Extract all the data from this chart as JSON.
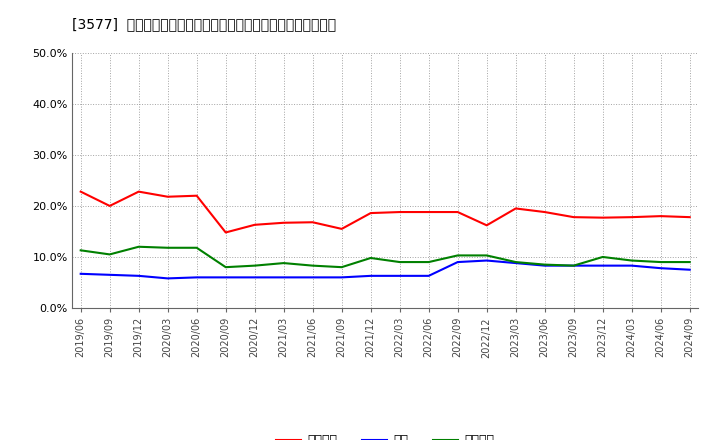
{
  "title": "[3577]  売上債権、在庫、買入債務の総資産に対する比率の推移",
  "background_color": "#ffffff",
  "plot_bg_color": "#ffffff",
  "grid_color": "#999999",
  "ylim": [
    0.0,
    0.5
  ],
  "yticks": [
    0.0,
    0.1,
    0.2,
    0.3,
    0.4,
    0.5
  ],
  "legend_labels": [
    "売上債権",
    "在庫",
    "買入債務"
  ],
  "line_colors": [
    "#ff0000",
    "#0000ff",
    "#008000"
  ],
  "dates": [
    "2019/06",
    "2019/09",
    "2019/12",
    "2020/03",
    "2020/06",
    "2020/09",
    "2020/12",
    "2021/03",
    "2021/06",
    "2021/09",
    "2021/12",
    "2022/03",
    "2022/06",
    "2022/09",
    "2022/12",
    "2023/03",
    "2023/06",
    "2023/09",
    "2023/12",
    "2024/03",
    "2024/06",
    "2024/09"
  ],
  "series_urikake": [
    0.228,
    0.2,
    0.228,
    0.218,
    0.22,
    0.148,
    0.163,
    0.167,
    0.168,
    0.155,
    0.186,
    0.188,
    0.188,
    0.188,
    0.162,
    0.195,
    0.188,
    0.178,
    0.177,
    0.178,
    0.18,
    0.178
  ],
  "series_zaiko": [
    0.067,
    0.065,
    0.063,
    0.058,
    0.06,
    0.06,
    0.06,
    0.06,
    0.06,
    0.06,
    0.063,
    0.063,
    0.063,
    0.09,
    0.093,
    0.088,
    0.083,
    0.083,
    0.083,
    0.083,
    0.078,
    0.075
  ],
  "series_kaiire": [
    0.113,
    0.105,
    0.12,
    0.118,
    0.118,
    0.08,
    0.083,
    0.088,
    0.083,
    0.08,
    0.098,
    0.09,
    0.09,
    0.103,
    0.103,
    0.09,
    0.085,
    0.083,
    0.1,
    0.093,
    0.09,
    0.09
  ]
}
